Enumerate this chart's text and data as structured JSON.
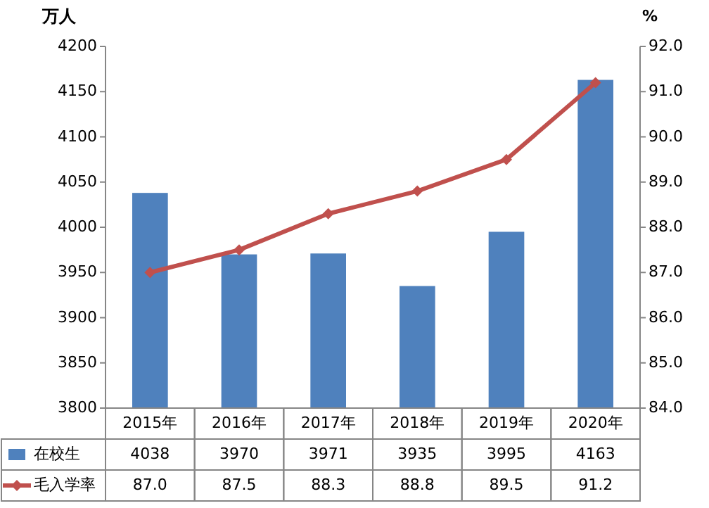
{
  "chart_data": {
    "type": "bar",
    "categories": [
      "2015年",
      "2016年",
      "2017年",
      "2018年",
      "2019年",
      "2020年"
    ],
    "ylabel": "万人",
    "y2label": "%",
    "ylim": [
      3800,
      4200
    ],
    "yticks": [
      3800,
      3850,
      3900,
      3950,
      4000,
      4050,
      4100,
      4150,
      4200
    ],
    "y2lim": [
      84,
      92
    ],
    "y2ticks": [
      {
        "value": 84,
        "label": "84.0"
      },
      {
        "value": 85,
        "label": "85.0"
      },
      {
        "value": 86,
        "label": "86.0"
      },
      {
        "value": 87,
        "label": "87.0"
      },
      {
        "value": 88,
        "label": "88.0"
      },
      {
        "value": 89,
        "label": "89.0"
      },
      {
        "value": 90,
        "label": "90.0"
      },
      {
        "value": 91,
        "label": "91.0"
      },
      {
        "value": 92,
        "label": "92.0"
      }
    ],
    "legend": "bottom",
    "grid": false,
    "series": [
      {
        "name": "在校生",
        "color": "#4f81bd",
        "values": [
          4038,
          3970,
          3971,
          3935,
          3995,
          4163
        ],
        "value_labels": [
          "4038",
          "3970",
          "3971",
          "3935",
          "3995",
          "4163"
        ]
      },
      {
        "name": "毛入学率",
        "type": "line",
        "axis": "y2",
        "color": "#c0504d",
        "marker": "diamond",
        "line_style": "solid",
        "values": [
          87.0,
          87.5,
          88.3,
          88.8,
          89.5,
          91.2
        ],
        "value_labels": [
          "87.0",
          "87.5",
          "88.3",
          "88.8",
          "89.5",
          "91.2"
        ]
      }
    ]
  }
}
